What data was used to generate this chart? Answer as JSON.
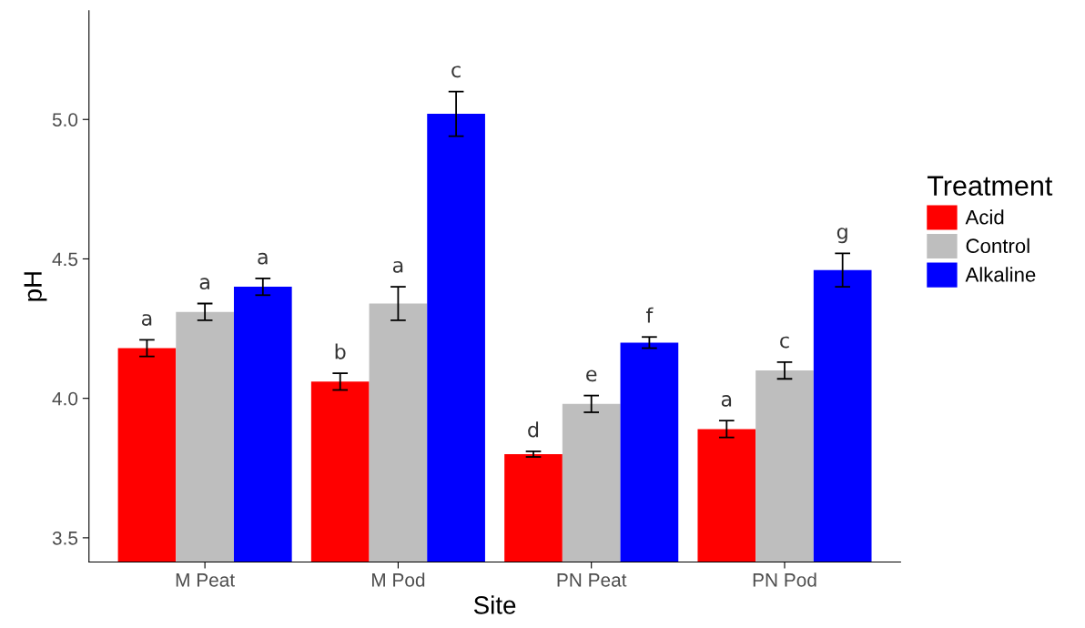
{
  "chart_data": {
    "type": "bar",
    "xlabel": "Site",
    "ylabel": "pH",
    "legend_title": "Treatment",
    "categories": [
      "M Peat",
      "M Pod",
      "PN Peat",
      "PN Pod"
    ],
    "series": [
      {
        "name": "Acid",
        "color": "#ff0000",
        "values": [
          4.18,
          4.06,
          3.8,
          3.89
        ],
        "errors": [
          0.03,
          0.03,
          0.01,
          0.03
        ],
        "value_labels": [
          "a",
          "b",
          "d",
          "a"
        ]
      },
      {
        "name": "Control",
        "color": "#bebebe",
        "values": [
          4.31,
          4.34,
          3.98,
          4.1
        ],
        "errors": [
          0.03,
          0.06,
          0.03,
          0.03
        ],
        "value_labels": [
          "a",
          "a",
          "e",
          "c"
        ]
      },
      {
        "name": "Alkaline",
        "color": "#0000ff",
        "values": [
          4.4,
          5.02,
          4.2,
          4.46
        ],
        "errors": [
          0.03,
          0.08,
          0.02,
          0.06
        ],
        "value_labels": [
          "a",
          "c",
          "f",
          "g"
        ]
      }
    ],
    "ylim": [
      3.413,
      5.39
    ],
    "yticks": [
      {
        "value": 3.5,
        "label": "3.5"
      },
      {
        "value": 4.0,
        "label": "4.0"
      },
      {
        "value": 4.5,
        "label": "4.5"
      },
      {
        "value": 5.0,
        "label": "5.0"
      }
    ],
    "grid": false,
    "legend": "right"
  }
}
